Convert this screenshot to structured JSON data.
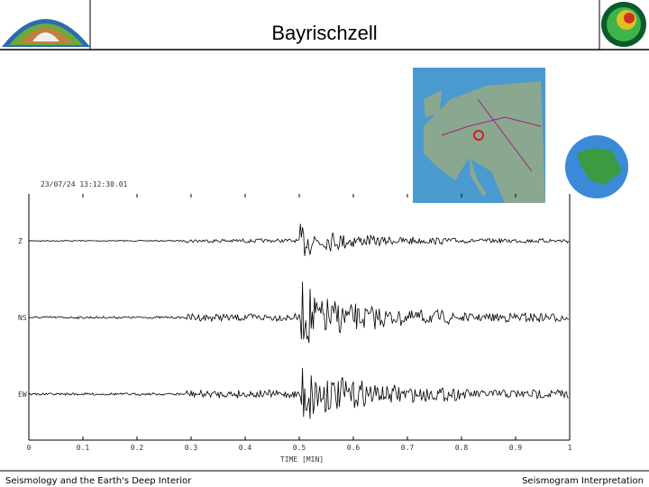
{
  "header": {
    "title": "Bayrischzell"
  },
  "seismogram": {
    "timestamp": "23/07/24 13:12:30.01",
    "x_label": "TIME [MIN]",
    "xlim": [
      0,
      1
    ],
    "xticks": [
      0,
      0.1,
      0.2,
      0.3,
      0.4,
      0.5,
      0.6,
      0.7,
      0.8,
      0.9,
      1
    ],
    "traces": [
      "Z",
      "NS",
      "EW"
    ]
  },
  "footer": {
    "left": "Seismology and the Earth's Deep Interior",
    "right": "Seismogram Interpretation"
  }
}
